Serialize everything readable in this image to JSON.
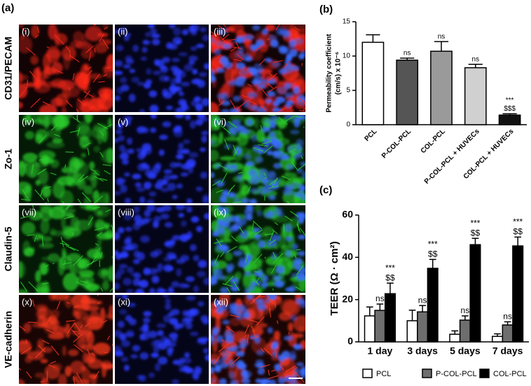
{
  "panel_labels": [
    "(a)",
    "(b)",
    "(c)"
  ],
  "micrographs": {
    "row_labels": [
      "CD31/PECAM",
      "Zo-1",
      "Claudin-5",
      "VE-cadherin"
    ],
    "panel_numerals": [
      [
        "(i)",
        "(ii)",
        "(iii)"
      ],
      [
        "(iv)",
        "(v)",
        "(vi)"
      ],
      [
        "(vii)",
        "(viii)",
        "(ix)"
      ],
      [
        "(x)",
        "(xi)",
        "(xii)"
      ]
    ]
  },
  "chart_data": [
    {
      "type": "bar",
      "ylabel": [
        "Permeability coefficient",
        "(cm/s) x 10⁻⁶"
      ],
      "categories": [
        "PCL",
        "P-COL-PCL",
        "COL-PCL",
        "P-COL-PCL + HUVECs",
        "COL-PCL + HUVECs"
      ],
      "values": [
        12.0,
        9.4,
        10.7,
        8.3,
        1.4
      ],
      "errors": [
        1.1,
        0.3,
        1.4,
        0.5,
        0.2
      ],
      "colors": [
        "#ffffff",
        "#555555",
        "#9a9a9a",
        "#d0d0d0",
        "#111111"
      ],
      "annotations": [
        [],
        [
          "ns"
        ],
        [
          "ns"
        ],
        [
          "ns"
        ],
        [
          "***",
          "$$$"
        ]
      ],
      "ylim": [
        0,
        15
      ],
      "yticks": [
        0,
        5,
        10,
        15
      ]
    },
    {
      "type": "bar",
      "ylabel": "TEER (Ω · cm²)",
      "categories": [
        "1 day",
        "3 days",
        "5 days",
        "7 days"
      ],
      "series": [
        {
          "name": "PCL",
          "color": "#ffffff",
          "values": [
            12.3,
            10.0,
            3.6,
            2.6
          ],
          "errors": [
            4.2,
            5.0,
            1.6,
            1.2
          ]
        },
        {
          "name": "P-COL-PCL",
          "color": "#6e6e6e",
          "values": [
            14.9,
            14.2,
            10.3,
            8.0
          ],
          "errors": [
            3.0,
            3.0,
            2.0,
            1.5
          ],
          "annotations": [
            [
              "ns"
            ],
            [
              "ns"
            ],
            [
              "ns"
            ],
            [
              "ns"
            ]
          ]
        },
        {
          "name": "COL-PCL",
          "color": "#000000",
          "values": [
            22.8,
            34.8,
            46.0,
            45.4
          ],
          "errors": [
            5.0,
            4.2,
            3.0,
            4.2
          ],
          "annotations": [
            [
              "***",
              "$$"
            ],
            [
              "***",
              "$$"
            ],
            [
              "***",
              "$$"
            ],
            [
              "***",
              "$$"
            ]
          ]
        }
      ],
      "ylim": [
        0,
        60
      ],
      "yticks": [
        0,
        20,
        40,
        60
      ]
    }
  ]
}
